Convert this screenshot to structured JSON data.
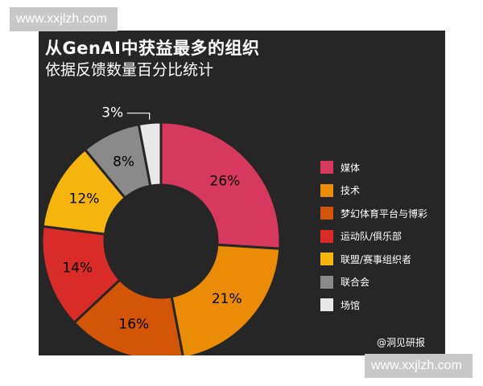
{
  "watermark": "www.xxjlzh.com",
  "credit": "@洞见研报",
  "chart_data": {
    "type": "pie",
    "title": "从GenAI中获益最多的组织",
    "subtitle": "依据反馈数量百分比统计",
    "categories": [
      "媒体",
      "技术",
      "梦幻体育平台与博彩",
      "运动队/俱乐部",
      "联盟/赛事组织者",
      "联合会",
      "场馆"
    ],
    "values": [
      26,
      21,
      16,
      14,
      12,
      8,
      3
    ],
    "data_labels": [
      "26%",
      "21%",
      "16%",
      "14%",
      "12%",
      "8%",
      "3%"
    ],
    "colors": [
      "#d6395d",
      "#eb8c06",
      "#d25606",
      "#d92b28",
      "#f5b50d",
      "#8a8a8a",
      "#e8e8e8"
    ],
    "label_colors": [
      "#000000",
      "#000000",
      "#000000",
      "#000000",
      "#000000",
      "#000000",
      "#ffffff"
    ],
    "legend_position": "right",
    "donut": true
  }
}
